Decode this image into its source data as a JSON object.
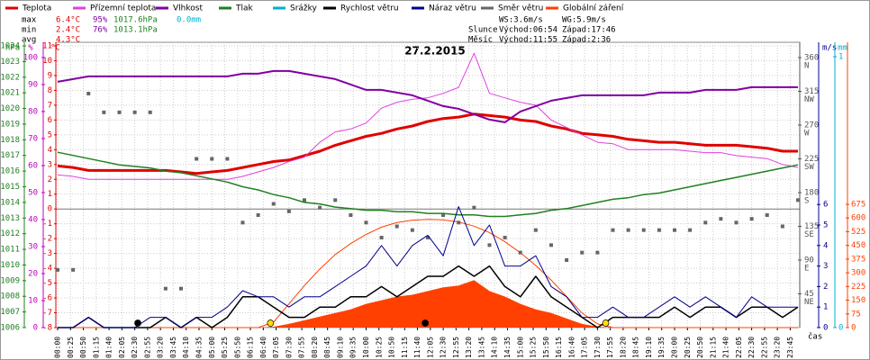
{
  "chart_data": {
    "type": "line",
    "title": "27.2.2015",
    "x_label": "čas",
    "xlim": [
      0,
      1440
    ],
    "xticks": [
      {
        "value": 0,
        "label": "00:00"
      },
      {
        "value": 25,
        "label": "00:25"
      },
      {
        "value": 50,
        "label": "00:50"
      },
      {
        "value": 75,
        "label": "01:15"
      },
      {
        "value": 100,
        "label": "01:40"
      },
      {
        "value": 125,
        "label": "02:05"
      },
      {
        "value": 150,
        "label": "02:30"
      },
      {
        "value": 175,
        "label": "02:55"
      },
      {
        "value": 200,
        "label": "03:20"
      },
      {
        "value": 225,
        "label": "03:45"
      },
      {
        "value": 250,
        "label": "04:10"
      },
      {
        "value": 275,
        "label": "04:35"
      },
      {
        "value": 300,
        "label": "05:00"
      },
      {
        "value": 325,
        "label": "05:25"
      },
      {
        "value": 350,
        "label": "05:50"
      },
      {
        "value": 375,
        "label": "06:15"
      },
      {
        "value": 400,
        "label": "06:40"
      },
      {
        "value": 425,
        "label": "07:05"
      },
      {
        "value": 450,
        "label": "07:30"
      },
      {
        "value": 475,
        "label": "07:55"
      },
      {
        "value": 500,
        "label": "08:20"
      },
      {
        "value": 525,
        "label": "08:45"
      },
      {
        "value": 550,
        "label": "09:10"
      },
      {
        "value": 575,
        "label": "09:35"
      },
      {
        "value": 600,
        "label": "10:00"
      },
      {
        "value": 625,
        "label": "10:25"
      },
      {
        "value": 650,
        "label": "10:50"
      },
      {
        "value": 675,
        "label": "11:15"
      },
      {
        "value": 700,
        "label": "11:40"
      },
      {
        "value": 725,
        "label": "12:05"
      },
      {
        "value": 750,
        "label": "12:30"
      },
      {
        "value": 775,
        "label": "12:55"
      },
      {
        "value": 800,
        "label": "13:20"
      },
      {
        "value": 825,
        "label": "13:45"
      },
      {
        "value": 850,
        "label": "14:10"
      },
      {
        "value": 875,
        "label": "14:35"
      },
      {
        "value": 900,
        "label": "15:00"
      },
      {
        "value": 925,
        "label": "15:25"
      },
      {
        "value": 950,
        "label": "15:50"
      },
      {
        "value": 975,
        "label": "16:15"
      },
      {
        "value": 1000,
        "label": "16:40"
      },
      {
        "value": 1025,
        "label": "17:05"
      },
      {
        "value": 1050,
        "label": "17:30"
      },
      {
        "value": 1075,
        "label": "17:55"
      },
      {
        "value": 1100,
        "label": "18:20"
      },
      {
        "value": 1125,
        "label": "18:45"
      },
      {
        "value": 1150,
        "label": "19:10"
      },
      {
        "value": 1175,
        "label": "19:35"
      },
      {
        "value": 1200,
        "label": "20:00"
      },
      {
        "value": 1225,
        "label": "20:25"
      },
      {
        "value": 1250,
        "label": "20:50"
      },
      {
        "value": 1275,
        "label": "21:15"
      },
      {
        "value": 1300,
        "label": "21:40"
      },
      {
        "value": 1325,
        "label": "22:05"
      },
      {
        "value": 1350,
        "label": "22:30"
      },
      {
        "value": 1375,
        "label": "22:55"
      },
      {
        "value": 1400,
        "label": "23:20"
      },
      {
        "value": 1425,
        "label": "23:45"
      }
    ],
    "y_label": "°C",
    "y_color": "#e00000",
    "ylim": [
      -8,
      11
    ],
    "yticks": [
      -8,
      -7,
      -6,
      -5,
      -4,
      -3,
      -2,
      -1,
      0,
      1,
      2,
      3,
      4,
      5,
      6,
      7,
      8,
      9,
      10,
      11
    ],
    "grid": true,
    "axes": {
      "pressure": {
        "label": "hPa",
        "color": "#208020",
        "lim": [
          1006,
          1024
        ],
        "ticks": [
          1006,
          1007,
          1008,
          1009,
          1010,
          1011,
          1012,
          1013,
          1014,
          1015,
          1016,
          1017,
          1018,
          1019,
          1020,
          1021,
          1022,
          1023,
          1024
        ]
      },
      "humidity": {
        "label": "%",
        "color": "#c000c0",
        "lim": [
          0,
          104.3
        ],
        "ticks": [
          0,
          10,
          20,
          30,
          40,
          50,
          60,
          70,
          80,
          90,
          100
        ]
      },
      "direction": {
        "color": "#555555",
        "lim": [
          0,
          375.6
        ],
        "ticks": [
          45,
          90,
          135,
          180,
          225,
          270,
          315,
          360
        ],
        "compass": [
          "NE",
          "E",
          "SE",
          "S",
          "SW",
          "W",
          "NW",
          "N"
        ]
      },
      "wind": {
        "label": "m/s",
        "color": "#000090",
        "lim": [
          0,
          13.73
        ],
        "ticks": [
          0,
          1,
          2,
          3,
          4,
          5,
          6
        ]
      },
      "rain": {
        "label": "mm",
        "color": "#00b0d0",
        "lim": [
          0,
          1.04
        ],
        "ticks": [
          0,
          1
        ]
      },
      "radiation": {
        "color": "#ff4000",
        "lim": [
          0,
          1542
        ],
        "ticks": [
          0,
          75,
          150,
          225,
          300,
          375,
          450,
          525,
          600,
          675
        ]
      }
    },
    "x": [
      0,
      30,
      60,
      90,
      120,
      150,
      180,
      210,
      240,
      270,
      300,
      330,
      360,
      390,
      420,
      450,
      480,
      510,
      540,
      570,
      600,
      630,
      660,
      690,
      720,
      750,
      780,
      810,
      840,
      870,
      900,
      930,
      960,
      990,
      1020,
      1050,
      1080,
      1110,
      1140,
      1170,
      1200,
      1230,
      1260,
      1290,
      1320,
      1350,
      1380,
      1410,
      1440
    ],
    "series": [
      {
        "name": "Teplota",
        "color": "#e00000",
        "axis": "temperature",
        "style": "line",
        "width": 3,
        "values": [
          2.9,
          2.8,
          2.6,
          2.6,
          2.6,
          2.6,
          2.6,
          2.6,
          2.5,
          2.4,
          2.5,
          2.6,
          2.8,
          3.0,
          3.2,
          3.3,
          3.6,
          3.9,
          4.3,
          4.6,
          4.9,
          5.1,
          5.4,
          5.6,
          5.9,
          6.1,
          6.2,
          6.4,
          6.3,
          6.2,
          6.0,
          5.9,
          5.6,
          5.4,
          5.1,
          5.0,
          4.9,
          4.7,
          4.6,
          4.5,
          4.5,
          4.4,
          4.3,
          4.3,
          4.3,
          4.2,
          4.1,
          3.9,
          3.9
        ]
      },
      {
        "name": "Přízemní teplota",
        "color": "#e040e0",
        "axis": "temperature",
        "style": "line",
        "width": 1,
        "values": [
          2.3,
          2.2,
          2.0,
          2.0,
          2.0,
          2.0,
          2.0,
          2.0,
          2.0,
          2.0,
          2.0,
          2.0,
          2.2,
          2.5,
          2.8,
          3.2,
          3.5,
          4.5,
          5.2,
          5.4,
          5.8,
          6.8,
          7.2,
          7.4,
          7.5,
          7.8,
          8.2,
          10.5,
          7.8,
          7.5,
          7.2,
          7.0,
          6.0,
          5.5,
          5.0,
          4.5,
          4.4,
          4.0,
          4.0,
          4.0,
          4.0,
          3.9,
          3.8,
          3.8,
          3.6,
          3.5,
          3.4,
          3.0,
          2.8
        ]
      },
      {
        "name": "Vlhkost",
        "color": "#8000a0",
        "axis": "humidity",
        "style": "line",
        "width": 2,
        "values": [
          91,
          92,
          93,
          93,
          93,
          93,
          93,
          93,
          93,
          93,
          93,
          93,
          94,
          94,
          95,
          95,
          94,
          93,
          92,
          90,
          88,
          88,
          87,
          86,
          84,
          82,
          81,
          79,
          77,
          76,
          80,
          82,
          84,
          85,
          86,
          86,
          86,
          86,
          86,
          87,
          87,
          87,
          88,
          88,
          88,
          89,
          89,
          89,
          89
        ]
      },
      {
        "name": "Tlak",
        "color": "#208020",
        "axis": "pressure",
        "style": "line",
        "width": 1.5,
        "values": [
          1017.2,
          1017.0,
          1016.8,
          1016.6,
          1016.4,
          1016.3,
          1016.2,
          1016.0,
          1015.9,
          1015.7,
          1015.5,
          1015.3,
          1015.0,
          1014.8,
          1014.5,
          1014.3,
          1014.0,
          1013.9,
          1013.7,
          1013.6,
          1013.5,
          1013.5,
          1013.4,
          1013.4,
          1013.3,
          1013.3,
          1013.2,
          1013.2,
          1013.1,
          1013.1,
          1013.2,
          1013.3,
          1013.5,
          1013.6,
          1013.8,
          1014.0,
          1014.2,
          1014.3,
          1014.5,
          1014.6,
          1014.8,
          1015.0,
          1015.2,
          1015.4,
          1015.6,
          1015.8,
          1016.0,
          1016.2,
          1016.4
        ]
      },
      {
        "name": "Srážky",
        "color": "#00b0d0",
        "axis": "rain",
        "style": "line",
        "width": 1
      },
      {
        "name": "Rychlost větru",
        "color": "#000000",
        "axis": "wind",
        "style": "line",
        "width": 1.5,
        "values": [
          0,
          0,
          0.5,
          0,
          0,
          0,
          0,
          0.5,
          0,
          0.5,
          0,
          0.5,
          1.5,
          1.5,
          1,
          0.5,
          0.5,
          1,
          1,
          1.5,
          1.5,
          2,
          1.5,
          2,
          2.5,
          2.5,
          3,
          2.5,
          3,
          2,
          1.5,
          2.5,
          1.5,
          1,
          0.5,
          0,
          0.5,
          0.5,
          0.5,
          0.5,
          1,
          0.5,
          1,
          1,
          0.5,
          1,
          1,
          0.5,
          1
        ]
      },
      {
        "name": "Náraz větru",
        "color": "#000090",
        "axis": "wind",
        "style": "line",
        "width": 1,
        "values": [
          0,
          0,
          0.5,
          0,
          0,
          0,
          0.5,
          0.5,
          0,
          0.5,
          0.5,
          1,
          1.8,
          1.5,
          1.5,
          1,
          1.5,
          1.5,
          2,
          2.5,
          3,
          4,
          3,
          4,
          4.5,
          3.5,
          5.9,
          4,
          5,
          3,
          3,
          3.5,
          2,
          1.5,
          0.5,
          0.5,
          1,
          0.5,
          0.5,
          1,
          1.5,
          1,
          1.5,
          1,
          0.5,
          1.5,
          1,
          1,
          1
        ]
      },
      {
        "name": "Směr větru",
        "color": "#666666",
        "axis": "direction",
        "style": "points",
        "values": [
          77,
          77,
          312,
          287,
          287,
          287,
          287,
          52,
          52,
          225,
          225,
          225,
          140,
          150,
          165,
          155,
          170,
          160,
          170,
          150,
          140,
          120,
          135,
          130,
          120,
          150,
          140,
          160,
          110,
          120,
          100,
          130,
          110,
          90,
          100,
          100,
          130,
          130,
          130,
          130,
          130,
          130,
          140,
          145,
          140,
          145,
          150,
          135,
          170
        ]
      },
      {
        "name": "Globální záření",
        "color": "#ff4000",
        "axis": "radiation",
        "style": "area",
        "values": [
          0,
          0,
          0,
          0,
          0,
          0,
          0,
          0,
          0,
          0,
          0,
          0,
          0,
          0,
          5,
          20,
          40,
          60,
          80,
          100,
          130,
          150,
          170,
          180,
          200,
          220,
          230,
          260,
          200,
          170,
          130,
          100,
          80,
          50,
          20,
          5,
          0,
          0,
          0,
          0,
          0,
          0,
          0,
          0,
          0,
          0,
          0,
          0,
          0
        ],
        "clear_sky": [
          0,
          0,
          0,
          0,
          0,
          0,
          0,
          0,
          0,
          0,
          0,
          0,
          0,
          0,
          30,
          130,
          230,
          320,
          400,
          460,
          510,
          550,
          575,
          588,
          592,
          590,
          578,
          555,
          520,
          470,
          410,
          340,
          260,
          170,
          80,
          20,
          0,
          0,
          0,
          0,
          0,
          0,
          0,
          0,
          0,
          0,
          0,
          0,
          0
        ]
      }
    ],
    "stats": {
      "max": [
        "max",
        "6.4°C",
        "95%",
        "1017.6hPa",
        "0.0mm"
      ],
      "min": [
        "min",
        "2.4°C",
        "76%",
        "1013.1hPa"
      ],
      "avg": [
        "avg",
        "4.3°C"
      ]
    },
    "wind_info": [
      "WS:3.6m/s",
      "WG:5.9m/s"
    ],
    "sun": {
      "label": "Slunce",
      "rise": "Východ:06:54",
      "set": "Západ:17:46"
    },
    "moon": {
      "label": "Měsíc",
      "rise": "Východ:11:55",
      "set": "Západ:2:36"
    }
  }
}
